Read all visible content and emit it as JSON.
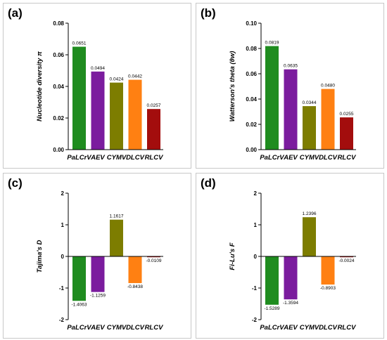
{
  "colors": [
    "#1f8c1f",
    "#7b1c9e",
    "#7d7d00",
    "#ff8012",
    "#a30d0d"
  ],
  "chart_data": [
    {
      "panel": "(a)",
      "type": "bar",
      "ylabel": "Nucleotide diversity π",
      "categories": [
        "PaLCrV",
        "AEV",
        "CYMV",
        "DLCV",
        "RLCV"
      ],
      "values": [
        0.0651,
        0.0494,
        0.0424,
        0.0442,
        0.0257
      ],
      "value_labels": [
        "0.0651",
        "0.0494",
        "0.0424",
        "0.0442",
        "0.0257"
      ],
      "ylim": [
        0,
        0.08
      ],
      "yticks": [
        0,
        0.02,
        0.04,
        0.06,
        0.08
      ],
      "ytick_labels": [
        "0.00",
        "0.02",
        "0.04",
        "0.06",
        "0.08"
      ]
    },
    {
      "panel": "(b)",
      "type": "bar",
      "ylabel": "Watterson's theta (θw)",
      "categories": [
        "PaLCrV",
        "AEV",
        "CYMV",
        "DLCV",
        "RLCV"
      ],
      "values": [
        0.0819,
        0.0635,
        0.0344,
        0.048,
        0.0255
      ],
      "value_labels": [
        "0.0819",
        "0.0635",
        "0.0344",
        "0.0480",
        "0.0255"
      ],
      "ylim": [
        0,
        0.1
      ],
      "yticks": [
        0,
        0.02,
        0.04,
        0.06,
        0.08,
        0.1
      ],
      "ytick_labels": [
        "0.00",
        "0.02",
        "0.04",
        "0.06",
        "0.08",
        "0.10"
      ]
    },
    {
      "panel": "(c)",
      "type": "bar",
      "ylabel": "Tajima's D",
      "categories": [
        "PaLCrV",
        "AEV",
        "CYMV",
        "DLCV",
        "RLCV"
      ],
      "values": [
        -1.4063,
        -1.1259,
        1.1617,
        -0.8438,
        -0.0109
      ],
      "value_labels": [
        "-1.4063",
        "-1.1259",
        "1.1617",
        "-0.8438",
        "-0.0109"
      ],
      "ylim": [
        -2,
        2
      ],
      "yticks": [
        -2,
        -1,
        0,
        1,
        2
      ],
      "ytick_labels": [
        "-2",
        "-1",
        "0",
        "1",
        "2"
      ]
    },
    {
      "panel": "(d)",
      "type": "bar",
      "ylabel": "Fi-Lu's F",
      "categories": [
        "PaLCrV",
        "AEV",
        "CYMV",
        "DLCV",
        "RLCV"
      ],
      "values": [
        -1.5289,
        -1.3594,
        1.2396,
        -0.8903,
        -0.0024
      ],
      "value_labels": [
        "-1.5289",
        "-1.3594",
        "1.2396",
        "-0.8903",
        "-0.0024"
      ],
      "ylim": [
        -2,
        2
      ],
      "yticks": [
        -2,
        -1,
        0,
        1,
        2
      ],
      "ytick_labels": [
        "-2",
        "-1",
        "0",
        "1",
        "2"
      ]
    }
  ]
}
